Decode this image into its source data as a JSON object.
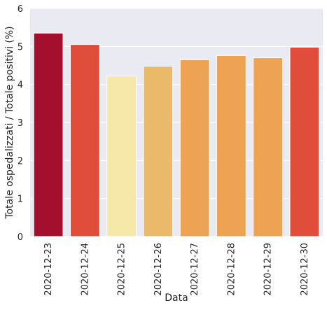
{
  "chart_data": {
    "type": "bar",
    "title": "",
    "xlabel": "Data",
    "ylabel": "Totale ospedalizzati / Totale positivi (%)",
    "categories": [
      "2020-12-23",
      "2020-12-24",
      "2020-12-25",
      "2020-12-26",
      "2020-12-27",
      "2020-12-28",
      "2020-12-29",
      "2020-12-30"
    ],
    "values": [
      5.35,
      5.05,
      4.22,
      4.48,
      4.65,
      4.76,
      4.7,
      4.98
    ],
    "colors": [
      "#a50f2e",
      "#e04e3b",
      "#f6e8a9",
      "#ebb96a",
      "#eea253",
      "#eea253",
      "#eea253",
      "#e04e3b"
    ],
    "ylim": [
      0,
      6
    ],
    "yticks": [
      0,
      1,
      2,
      3,
      4,
      5,
      6
    ],
    "grid": true,
    "background": "#eaeaf2",
    "grid_color": "#ffffff"
  }
}
